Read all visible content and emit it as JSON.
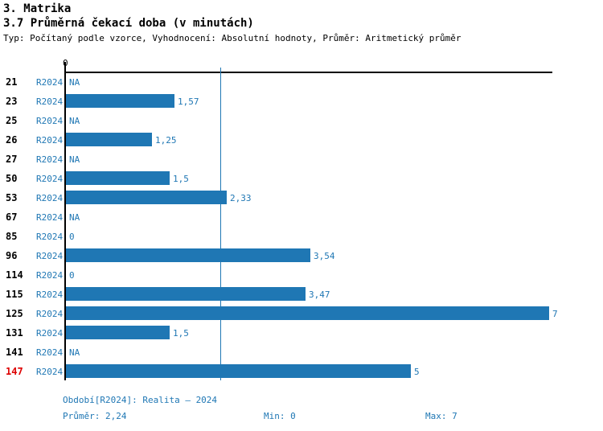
{
  "header": {
    "section_title": "3. Matrika",
    "chart_title": "3.7 Průměrná čekací doba (v minutách)",
    "subtitle": "Typ: Počítaný podle vzorce, Vyhodnocení: Absolutní hodnoty, Průměr: Aritmetický průměr"
  },
  "chart_data": {
    "type": "bar",
    "orientation": "horizontal",
    "title": "3.7 Průměrná čekací doba (v minutách)",
    "axis": {
      "origin_label": "0",
      "xlim": [
        0,
        7
      ],
      "grid": "average-line-only"
    },
    "series_label": "R2024",
    "rows": [
      {
        "category": "21",
        "series": "R2024",
        "value": null,
        "display": "NA",
        "highlight": false
      },
      {
        "category": "23",
        "series": "R2024",
        "value": 1.57,
        "display": "1,57",
        "highlight": false
      },
      {
        "category": "25",
        "series": "R2024",
        "value": null,
        "display": "NA",
        "highlight": false
      },
      {
        "category": "26",
        "series": "R2024",
        "value": 1.25,
        "display": "1,25",
        "highlight": false
      },
      {
        "category": "27",
        "series": "R2024",
        "value": null,
        "display": "NA",
        "highlight": false
      },
      {
        "category": "50",
        "series": "R2024",
        "value": 1.5,
        "display": "1,5",
        "highlight": false
      },
      {
        "category": "53",
        "series": "R2024",
        "value": 2.33,
        "display": "2,33",
        "highlight": false
      },
      {
        "category": "67",
        "series": "R2024",
        "value": null,
        "display": "NA",
        "highlight": false
      },
      {
        "category": "85",
        "series": "R2024",
        "value": 0,
        "display": "0",
        "highlight": false
      },
      {
        "category": "96",
        "series": "R2024",
        "value": 3.54,
        "display": "3,54",
        "highlight": false
      },
      {
        "category": "114",
        "series": "R2024",
        "value": 0,
        "display": "0",
        "highlight": false
      },
      {
        "category": "115",
        "series": "R2024",
        "value": 3.47,
        "display": "3,47",
        "highlight": false
      },
      {
        "category": "125",
        "series": "R2024",
        "value": 7,
        "display": "7",
        "highlight": false
      },
      {
        "category": "131",
        "series": "R2024",
        "value": 1.5,
        "display": "1,5",
        "highlight": false
      },
      {
        "category": "141",
        "series": "R2024",
        "value": null,
        "display": "NA",
        "highlight": false
      },
      {
        "category": "147",
        "series": "R2024",
        "value": 5,
        "display": "5",
        "highlight": true
      }
    ],
    "average": 2.24,
    "min": 0,
    "max": 7
  },
  "footer": {
    "period_label": "Období[R2024]: Realita – 2024",
    "avg_label": "Průměr: 2,24",
    "min_label": "Min: 0",
    "max_label": "Max: 7"
  },
  "colors": {
    "bar_blue": "#1f77b4",
    "text_blue": "#1f77b4",
    "highlight_red": "#dd0000",
    "axis_black": "#000000"
  }
}
